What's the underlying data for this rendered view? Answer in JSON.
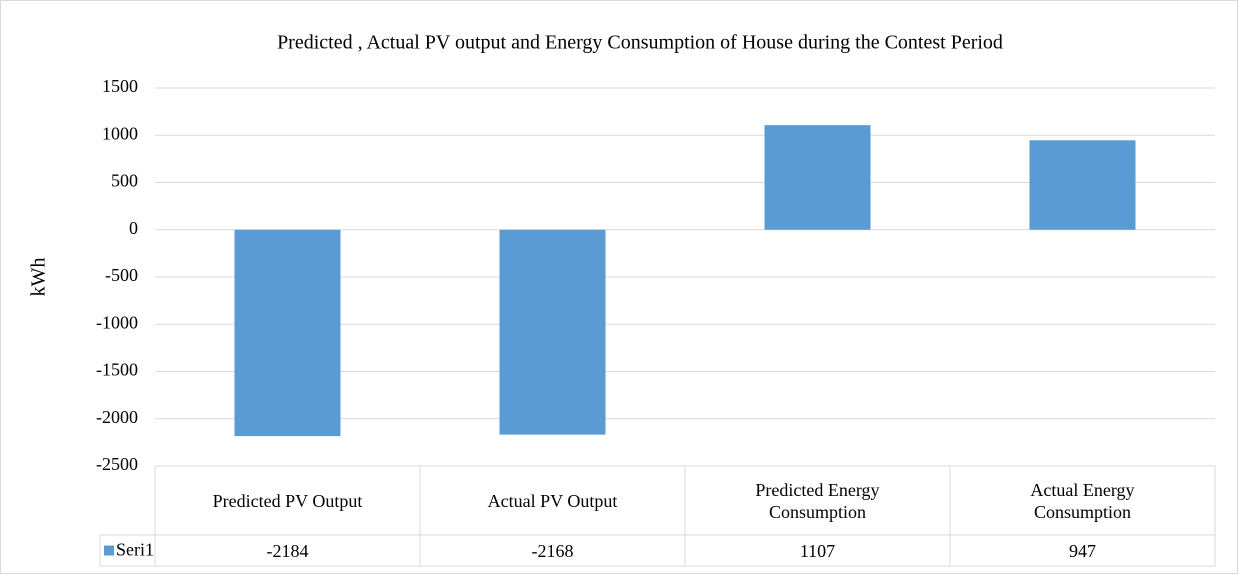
{
  "chart_data": {
    "type": "bar",
    "title": "Predicted , Actual PV output and Energy Consumption of House during the Contest Period",
    "y_label": "kWh",
    "categories": [
      "Predicted PV Output",
      "Actual PV Output",
      "Predicted Energy Consumption",
      "Actual Energy Consumption"
    ],
    "series": [
      {
        "name": "Seri1",
        "color": "#5b9bd5",
        "values": [
          -2184,
          -2168,
          1107,
          947
        ]
      }
    ],
    "ylim": [
      -2500,
      1500
    ],
    "yticks": [
      -2500,
      -2000,
      -1500,
      -1000,
      -500,
      0,
      500,
      1000,
      1500
    ],
    "grid": true,
    "data_table": true
  }
}
